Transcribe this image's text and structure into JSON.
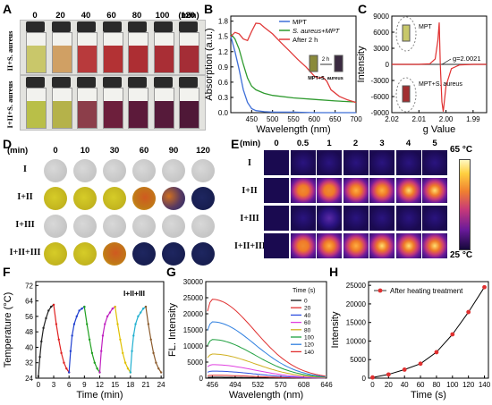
{
  "panel_letters": [
    "A",
    "B",
    "C",
    "D",
    "E",
    "F",
    "G",
    "H"
  ],
  "photos": {
    "columns": [
      "0",
      "20",
      "40",
      "60",
      "80",
      "100",
      "120"
    ],
    "unit": "(min)",
    "row_labels": [
      "II+S. aureus",
      "I+II+S. aureus"
    ],
    "colors_row1": [
      "#c9c76a",
      "#d0a064",
      "#b83a3c",
      "#b33234",
      "#ad2e33",
      "#a92e35",
      "#a42d36"
    ],
    "colors_row2": [
      "#b9bf48",
      "#b5b24a",
      "#8c3e4a",
      "#6d1f3c",
      "#5c1a3a",
      "#561a3a",
      "#4f1837"
    ]
  },
  "wells": {
    "unit": "(min)",
    "columns": [
      "0",
      "10",
      "30",
      "60",
      "90",
      "120"
    ],
    "rows": [
      "I",
      "I+II",
      "I+III",
      "I+II+III"
    ],
    "grid": [
      [
        "grey",
        "grey",
        "grey",
        "grey",
        "grey",
        "grey"
      ],
      [
        "yellow",
        "yellow",
        "yellow",
        "orange",
        "orange-navy",
        "navy"
      ],
      [
        "grey",
        "grey",
        "grey",
        "grey",
        "grey",
        "grey"
      ],
      [
        "yellow",
        "yellow",
        "orange",
        "navy",
        "navy",
        "navy"
      ]
    ]
  },
  "thermal": {
    "unit": "(min)",
    "columns": [
      "0",
      "0.5",
      "1",
      "2",
      "3",
      "4",
      "5"
    ],
    "rows": [
      "I",
      "I+II",
      "I+III",
      "I+II+III"
    ],
    "colorbar": {
      "max_label": "65 °C",
      "min_label": "25 °C"
    },
    "intensity": [
      [
        0.0,
        0.04,
        0.05,
        0.05,
        0.06,
        0.06,
        0.06
      ],
      [
        0.0,
        0.55,
        0.68,
        0.78,
        0.84,
        0.88,
        0.92
      ],
      [
        0.0,
        0.05,
        0.28,
        0.07,
        0.08,
        0.08,
        0.08
      ],
      [
        0.0,
        0.62,
        0.74,
        0.82,
        0.88,
        0.92,
        0.95
      ]
    ]
  },
  "chart_data": [
    {
      "panel": "B",
      "type": "line",
      "xlabel": "Wavelength (nm)",
      "ylabel": "Absorption (a.u.)",
      "xlim": [
        400,
        700
      ],
      "ylim": [
        0,
        1.9
      ],
      "xticks": [
        450,
        500,
        550,
        600,
        650,
        700
      ],
      "yticks": [
        0.0,
        0.3,
        0.6,
        0.9,
        1.2,
        1.5,
        1.8
      ],
      "legend": "top-right",
      "inset_labels": {
        "arrow": "2 h",
        "caption": "MPT+S. aureus"
      },
      "series": [
        {
          "name": "MPT",
          "color": "#3f6fd8",
          "x": [
            400,
            410,
            420,
            430,
            440,
            450,
            460,
            480,
            500,
            550,
            600,
            650,
            700
          ],
          "y": [
            1.5,
            1.2,
            0.85,
            0.45,
            0.2,
            0.08,
            0.04,
            0.02,
            0.01,
            0.01,
            0.0,
            0.0,
            0.0
          ]
        },
        {
          "name": "S. aureus+MPT",
          "color": "#2e9a2e",
          "x": [
            400,
            410,
            420,
            430,
            440,
            450,
            460,
            480,
            500,
            550,
            600,
            650,
            700
          ],
          "y": [
            1.55,
            1.45,
            1.25,
            0.95,
            0.68,
            0.52,
            0.45,
            0.38,
            0.34,
            0.29,
            0.26,
            0.23,
            0.21
          ]
        },
        {
          "name": "After 2 h",
          "color": "#e03a3a",
          "x": [
            400,
            410,
            420,
            430,
            440,
            450,
            460,
            470,
            480,
            500,
            520,
            540,
            560,
            580,
            600,
            610,
            620,
            630,
            640,
            660,
            680,
            700
          ],
          "y": [
            1.5,
            1.58,
            1.55,
            1.45,
            1.42,
            1.6,
            1.76,
            1.75,
            1.68,
            1.55,
            1.38,
            1.22,
            1.05,
            0.9,
            0.72,
            0.68,
            0.7,
            0.62,
            0.45,
            0.32,
            0.25,
            0.2
          ]
        }
      ]
    },
    {
      "panel": "C",
      "type": "line",
      "xlabel": "g Value",
      "ylabel": "Intensity",
      "xlim": [
        2.02,
        1.985
      ],
      "ylim": [
        -9000,
        9000
      ],
      "xticks": [
        2.02,
        2.01,
        2.0,
        1.99
      ],
      "yticks": [
        -9000,
        -6000,
        -3000,
        0,
        3000,
        6000,
        9000
      ],
      "annotation": "g=2.0021",
      "series": [
        {
          "name": "MPT",
          "color": "#555555",
          "x": [
            2.02,
            2.01,
            2.004,
            2.0021,
            2.0,
            1.99,
            1.985
          ],
          "y": [
            0,
            0,
            0,
            0,
            0,
            0,
            0
          ]
        },
        {
          "name": "MPT+S. aureus",
          "color": "#e03030",
          "x": [
            2.02,
            2.01,
            2.006,
            2.004,
            2.003,
            2.0025,
            2.0021,
            2.0015,
            2.001,
            2.0,
            1.998,
            1.995,
            1.99,
            1.985
          ],
          "y": [
            0,
            0,
            100,
            1000,
            4500,
            7800,
            0,
            -7000,
            -8800,
            -4000,
            -800,
            -100,
            0,
            0
          ]
        }
      ]
    },
    {
      "panel": "F",
      "type": "line",
      "xlabel": "Time (min)",
      "ylabel": "Temperature (°C)",
      "annotation": "I+II+III",
      "xlim": [
        -0.5,
        24.5
      ],
      "ylim": [
        24,
        74
      ],
      "xticks": [
        0,
        3,
        6,
        9,
        12,
        15,
        18,
        21,
        24
      ],
      "yticks": [
        24,
        32,
        40,
        48,
        56,
        64,
        72
      ],
      "series": [
        {
          "color": "#222222",
          "x": [
            0,
            0.3,
            0.6,
            1,
            1.5,
            2,
            2.5,
            3
          ],
          "y": [
            25,
            35,
            43,
            50,
            55,
            59,
            61,
            62
          ]
        },
        {
          "color": "#e02020",
          "x": [
            3,
            3.5,
            4,
            4.5,
            5,
            5.5,
            6
          ],
          "y": [
            62,
            52,
            44,
            37,
            32,
            29,
            27
          ]
        },
        {
          "color": "#2040d0",
          "x": [
            6,
            6.3,
            6.6,
            7,
            7.5,
            8,
            8.5,
            9
          ],
          "y": [
            27,
            38,
            46,
            52,
            56,
            59,
            60,
            61
          ]
        },
        {
          "color": "#20a020",
          "x": [
            9,
            9.5,
            10,
            10.5,
            11,
            11.5,
            12
          ],
          "y": [
            61,
            52,
            44,
            37,
            32,
            29,
            27
          ]
        },
        {
          "color": "#c020c0",
          "x": [
            12,
            12.3,
            12.6,
            13,
            13.5,
            14,
            14.5,
            15
          ],
          "y": [
            27,
            38,
            46,
            52,
            56,
            58,
            60,
            61
          ]
        },
        {
          "color": "#e0c000",
          "x": [
            15,
            15.5,
            16,
            16.5,
            17,
            17.5,
            18
          ],
          "y": [
            61,
            52,
            44,
            37,
            32,
            29,
            27
          ]
        },
        {
          "color": "#20b0d0",
          "x": [
            18,
            18.3,
            18.6,
            19,
            19.5,
            20,
            20.5,
            21
          ],
          "y": [
            27,
            38,
            46,
            52,
            56,
            58,
            60,
            61
          ]
        },
        {
          "color": "#8b5a2b",
          "x": [
            21,
            21.5,
            22,
            22.5,
            23,
            23.5,
            24
          ],
          "y": [
            61,
            52,
            44,
            37,
            32,
            29,
            27
          ]
        }
      ]
    },
    {
      "panel": "G",
      "type": "line",
      "xlabel": "Wavelength (nm)",
      "ylabel": "FL. Intensity",
      "xlim": [
        445,
        646
      ],
      "ylim": [
        0,
        30000
      ],
      "xticks": [
        456,
        494,
        532,
        570,
        608,
        646
      ],
      "yticks": [
        0,
        5000,
        10000,
        15000,
        20000,
        25000,
        30000
      ],
      "legend": "top-right",
      "legend_title": "Time (s)",
      "peaks": [
        0,
        20,
        40,
        60,
        80,
        100,
        120,
        140
      ],
      "series": [
        {
          "name": "0",
          "color": "#111111",
          "peak": 300
        },
        {
          "name": "20",
          "color": "#e03030",
          "peak": 900
        },
        {
          "name": "40",
          "color": "#3050e0",
          "peak": 2200
        },
        {
          "name": "60",
          "color": "#e040e0",
          "peak": 4200
        },
        {
          "name": "80",
          "color": "#d0b020",
          "peak": 7500
        },
        {
          "name": "100",
          "color": "#20a040",
          "peak": 12000
        },
        {
          "name": "120",
          "color": "#3080e0",
          "peak": 17500
        },
        {
          "name": "140",
          "color": "#e03030",
          "peak": 24500
        }
      ]
    },
    {
      "panel": "H",
      "type": "line",
      "xlabel": "Time (s)",
      "ylabel": "Intensity",
      "xlim": [
        -5,
        145
      ],
      "ylim": [
        0,
        26000
      ],
      "xticks": [
        0,
        20,
        40,
        60,
        80,
        100,
        120,
        140
      ],
      "yticks": [
        0,
        5000,
        10000,
        15000,
        20000,
        25000
      ],
      "legend": "top-left",
      "series": [
        {
          "name": "After heating treatment",
          "color": "#e03030",
          "x": [
            0,
            20,
            40,
            60,
            80,
            100,
            120,
            140
          ],
          "y": [
            200,
            1000,
            2300,
            3900,
            7000,
            11800,
            17800,
            24500
          ]
        }
      ]
    }
  ]
}
